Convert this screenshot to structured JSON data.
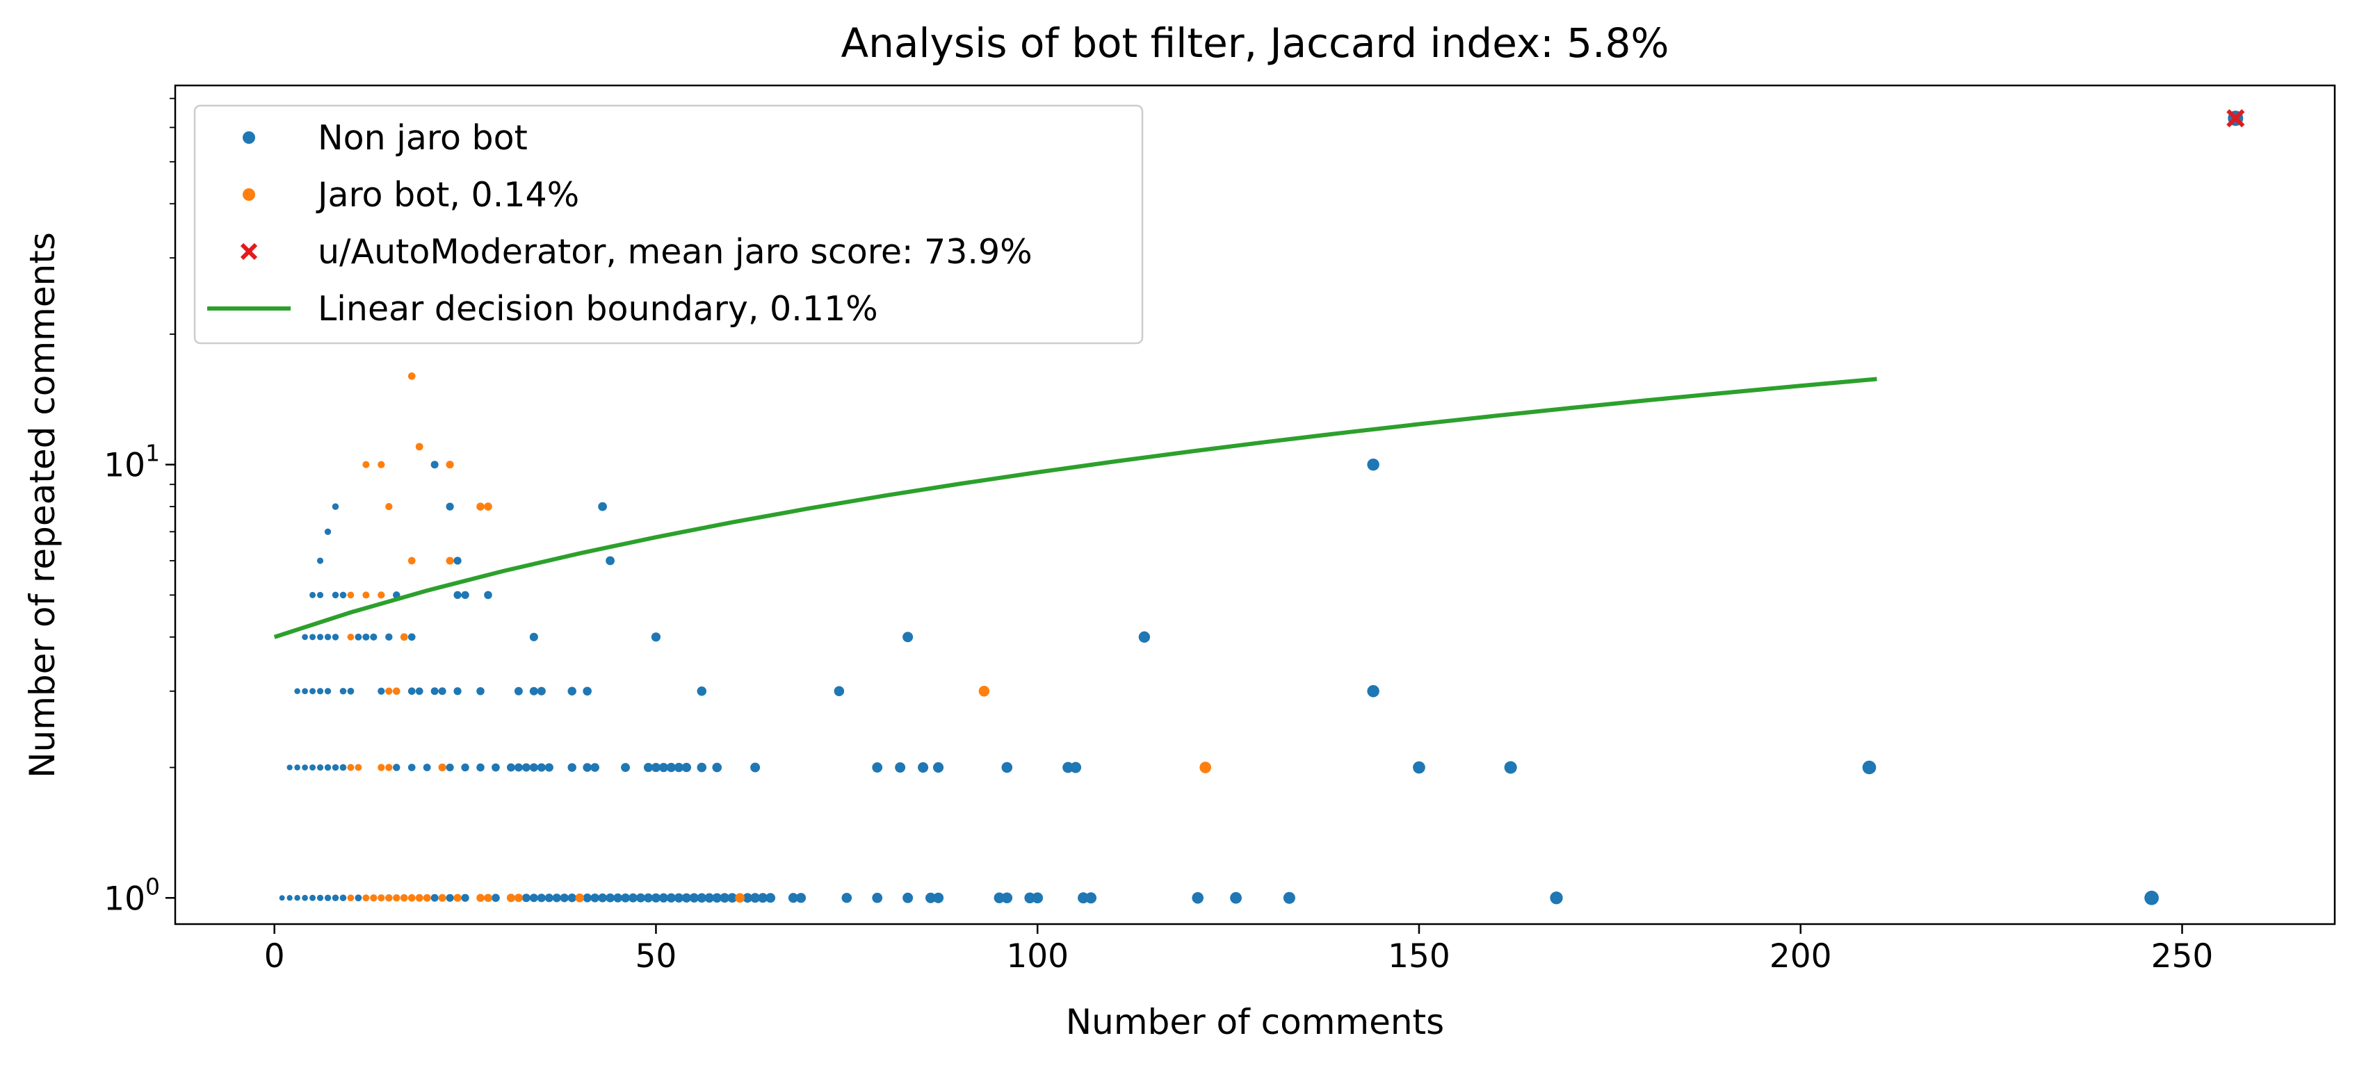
{
  "chart_data": {
    "type": "scatter",
    "title": "Analysis of bot filter, Jaccard index: 5.8%",
    "xlabel": "Number of comments",
    "ylabel": "Number of repeated comments",
    "xlim": [
      -13,
      270
    ],
    "ylim": [
      0.87,
      75
    ],
    "yscale": "log",
    "grid": false,
    "legend_position": "top-left",
    "x_ticks": [
      0,
      50,
      100,
      150,
      200,
      250
    ],
    "x_tick_labels": [
      "0",
      "50",
      "100",
      "150",
      "200",
      "250"
    ],
    "y_ticks": [
      1,
      10
    ],
    "y_tick_labels": [
      {
        "base": "10",
        "exp": "0"
      },
      {
        "base": "10",
        "exp": "1"
      }
    ],
    "colors": {
      "non_jaro": "#1f77b4",
      "jaro": "#ff7f0e",
      "automod": "#e31a1c",
      "boundary": "#2ca02c"
    },
    "series": [
      {
        "name": "Non jaro bot",
        "kind": "points",
        "color": "#1f77b4",
        "points": [
          [
            1,
            1
          ],
          [
            2,
            1
          ],
          [
            3,
            1
          ],
          [
            4,
            1
          ],
          [
            5,
            1
          ],
          [
            6,
            1
          ],
          [
            7,
            1
          ],
          [
            8,
            1
          ],
          [
            9,
            1
          ],
          [
            11,
            1
          ],
          [
            13,
            1
          ],
          [
            15,
            1
          ],
          [
            17,
            1
          ],
          [
            19,
            1
          ],
          [
            21,
            1
          ],
          [
            23,
            1
          ],
          [
            25,
            1
          ],
          [
            29,
            1
          ],
          [
            31,
            1
          ],
          [
            33,
            1
          ],
          [
            34,
            1
          ],
          [
            35,
            1
          ],
          [
            36,
            1
          ],
          [
            37,
            1
          ],
          [
            38,
            1
          ],
          [
            39,
            1
          ],
          [
            40,
            1
          ],
          [
            41,
            1
          ],
          [
            42,
            1
          ],
          [
            43,
            1
          ],
          [
            44,
            1
          ],
          [
            45,
            1
          ],
          [
            46,
            1
          ],
          [
            47,
            1
          ],
          [
            48,
            1
          ],
          [
            49,
            1
          ],
          [
            50,
            1
          ],
          [
            51,
            1
          ],
          [
            52,
            1
          ],
          [
            53,
            1
          ],
          [
            54,
            1
          ],
          [
            55,
            1
          ],
          [
            56,
            1
          ],
          [
            57,
            1
          ],
          [
            58,
            1
          ],
          [
            59,
            1
          ],
          [
            60,
            1
          ],
          [
            62,
            1
          ],
          [
            63,
            1
          ],
          [
            64,
            1
          ],
          [
            65,
            1
          ],
          [
            68,
            1
          ],
          [
            69,
            1
          ],
          [
            75,
            1
          ],
          [
            79,
            1
          ],
          [
            83,
            1
          ],
          [
            86,
            1
          ],
          [
            87,
            1
          ],
          [
            95,
            1
          ],
          [
            96,
            1
          ],
          [
            99,
            1
          ],
          [
            100,
            1
          ],
          [
            106,
            1
          ],
          [
            107,
            1
          ],
          [
            121,
            1
          ],
          [
            126,
            1
          ],
          [
            133,
            1
          ],
          [
            168,
            1
          ],
          [
            246,
            1
          ],
          [
            2,
            2
          ],
          [
            3,
            2
          ],
          [
            4,
            2
          ],
          [
            5,
            2
          ],
          [
            6,
            2
          ],
          [
            7,
            2
          ],
          [
            8,
            2
          ],
          [
            9,
            2
          ],
          [
            10,
            2
          ],
          [
            16,
            2
          ],
          [
            18,
            2
          ],
          [
            20,
            2
          ],
          [
            22,
            2
          ],
          [
            23,
            2
          ],
          [
            25,
            2
          ],
          [
            27,
            2
          ],
          [
            29,
            2
          ],
          [
            31,
            2
          ],
          [
            32,
            2
          ],
          [
            33,
            2
          ],
          [
            34,
            2
          ],
          [
            35,
            2
          ],
          [
            36,
            2
          ],
          [
            39,
            2
          ],
          [
            41,
            2
          ],
          [
            42,
            2
          ],
          [
            46,
            2
          ],
          [
            49,
            2
          ],
          [
            50,
            2
          ],
          [
            51,
            2
          ],
          [
            52,
            2
          ],
          [
            53,
            2
          ],
          [
            54,
            2
          ],
          [
            56,
            2
          ],
          [
            58,
            2
          ],
          [
            63,
            2
          ],
          [
            79,
            2
          ],
          [
            82,
            2
          ],
          [
            85,
            2
          ],
          [
            87,
            2
          ],
          [
            96,
            2
          ],
          [
            104,
            2
          ],
          [
            105,
            2
          ],
          [
            150,
            2
          ],
          [
            162,
            2
          ],
          [
            209,
            2
          ],
          [
            3,
            3
          ],
          [
            4,
            3
          ],
          [
            5,
            3
          ],
          [
            6,
            3
          ],
          [
            7,
            3
          ],
          [
            9,
            3
          ],
          [
            10,
            3
          ],
          [
            14,
            3
          ],
          [
            16,
            3
          ],
          [
            18,
            3
          ],
          [
            19,
            3
          ],
          [
            21,
            3
          ],
          [
            22,
            3
          ],
          [
            24,
            3
          ],
          [
            27,
            3
          ],
          [
            32,
            3
          ],
          [
            34,
            3
          ],
          [
            35,
            3
          ],
          [
            39,
            3
          ],
          [
            41,
            3
          ],
          [
            56,
            3
          ],
          [
            74,
            3
          ],
          [
            144,
            3
          ],
          [
            4,
            4
          ],
          [
            5,
            4
          ],
          [
            6,
            4
          ],
          [
            7,
            4
          ],
          [
            8,
            4
          ],
          [
            11,
            4
          ],
          [
            12,
            4
          ],
          [
            13,
            4
          ],
          [
            15,
            4
          ],
          [
            17,
            4
          ],
          [
            18,
            4
          ],
          [
            34,
            4
          ],
          [
            50,
            4
          ],
          [
            83,
            4
          ],
          [
            114,
            4
          ],
          [
            5,
            5
          ],
          [
            6,
            5
          ],
          [
            8,
            5
          ],
          [
            9,
            5
          ],
          [
            16,
            5
          ],
          [
            24,
            5
          ],
          [
            25,
            5
          ],
          [
            28,
            5
          ],
          [
            6,
            6
          ],
          [
            24,
            6
          ],
          [
            44,
            6
          ],
          [
            7,
            7
          ],
          [
            8,
            8
          ],
          [
            23,
            8
          ],
          [
            43,
            8
          ],
          [
            21,
            10
          ],
          [
            144,
            10
          ]
        ]
      },
      {
        "name": "Jaro bot, 0.14%",
        "kind": "points",
        "color": "#ff7f0e",
        "points": [
          [
            10,
            1
          ],
          [
            12,
            1
          ],
          [
            13,
            1
          ],
          [
            14,
            1
          ],
          [
            15,
            1
          ],
          [
            16,
            1
          ],
          [
            17,
            1
          ],
          [
            18,
            1
          ],
          [
            19,
            1
          ],
          [
            20,
            1
          ],
          [
            22,
            1
          ],
          [
            24,
            1
          ],
          [
            27,
            1
          ],
          [
            28,
            1
          ],
          [
            31,
            1
          ],
          [
            32,
            1
          ],
          [
            40,
            1
          ],
          [
            61,
            1
          ],
          [
            10,
            2
          ],
          [
            11,
            2
          ],
          [
            14,
            2
          ],
          [
            15,
            2
          ],
          [
            22,
            2
          ],
          [
            122,
            2
          ],
          [
            15,
            3
          ],
          [
            16,
            3
          ],
          [
            93,
            3
          ],
          [
            10,
            4
          ],
          [
            17,
            4
          ],
          [
            10,
            5
          ],
          [
            12,
            5
          ],
          [
            14,
            5
          ],
          [
            18,
            6
          ],
          [
            23,
            6
          ],
          [
            15,
            8
          ],
          [
            27,
            8
          ],
          [
            28,
            8
          ],
          [
            12,
            10
          ],
          [
            14,
            10
          ],
          [
            23,
            10
          ],
          [
            19,
            11
          ],
          [
            18,
            16
          ]
        ]
      },
      {
        "name": "u/AutoModerator, mean jaro score: 73.9%",
        "kind": "marker_x",
        "color": "#e31a1c",
        "points": [
          [
            257,
            63
          ]
        ]
      },
      {
        "name": "Linear decision boundary, 0.11%",
        "kind": "line",
        "color": "#2ca02c",
        "points": [
          [
            0,
            4
          ],
          [
            10,
            4.56
          ],
          [
            20,
            5.12
          ],
          [
            30,
            5.68
          ],
          [
            40,
            6.24
          ],
          [
            50,
            6.8
          ],
          [
            60,
            7.36
          ],
          [
            70,
            7.92
          ],
          [
            80,
            8.48
          ],
          [
            90,
            9.04
          ],
          [
            100,
            9.6
          ],
          [
            110,
            10.16
          ],
          [
            120,
            10.72
          ],
          [
            130,
            11.28
          ],
          [
            140,
            11.84
          ],
          [
            150,
            12.4
          ],
          [
            160,
            12.96
          ],
          [
            170,
            13.52
          ],
          [
            180,
            14.08
          ],
          [
            190,
            14.64
          ],
          [
            200,
            15.2
          ],
          [
            210,
            15.76
          ]
        ]
      }
    ]
  }
}
